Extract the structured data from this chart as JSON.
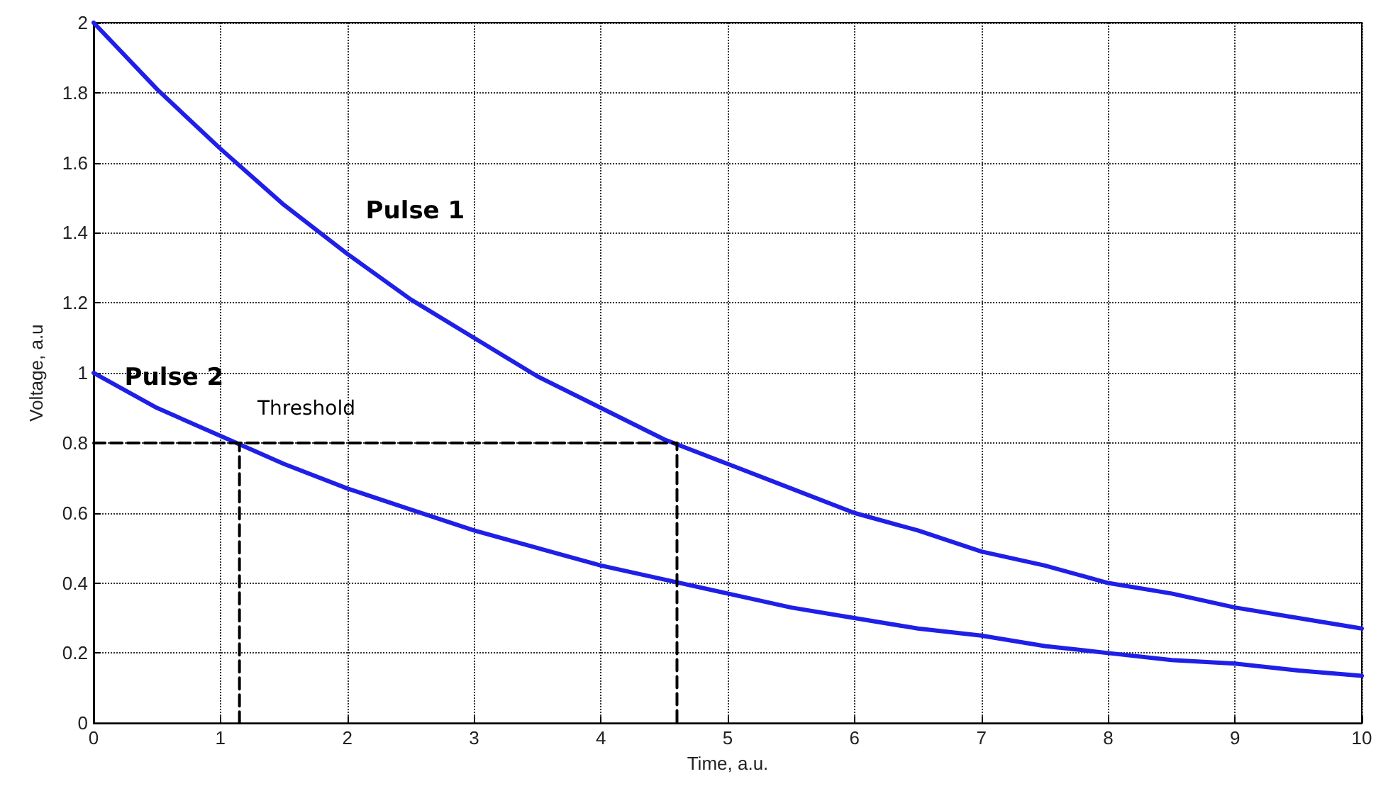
{
  "chart_data": {
    "type": "line",
    "xlabel": "Time, a.u.",
    "ylabel": "Voltage, a.u",
    "xlim": [
      0,
      10
    ],
    "xticks": [
      0,
      1,
      2,
      3,
      4,
      5,
      6,
      7,
      8,
      9,
      10
    ],
    "ylim": [
      0,
      2
    ],
    "yticks": [
      0,
      0.2,
      0.4,
      0.6,
      0.8,
      1,
      1.2,
      1.4,
      1.6,
      1.8,
      2
    ],
    "grid": true,
    "marker": "none",
    "series": [
      {
        "name": "Pulse 1",
        "color": "#1f1fe8",
        "line_style": "solid",
        "x": [
          0,
          0.5,
          1,
          1.5,
          2,
          2.5,
          3,
          3.5,
          4,
          4.5,
          5,
          5.5,
          6,
          6.5,
          7,
          7.5,
          8,
          8.5,
          9,
          9.5,
          10
        ],
        "values": [
          2,
          1.81,
          1.64,
          1.48,
          1.34,
          1.21,
          1.1,
          0.99,
          0.9,
          0.81,
          0.74,
          0.67,
          0.6,
          0.55,
          0.49,
          0.45,
          0.4,
          0.37,
          0.33,
          0.3,
          0.27
        ]
      },
      {
        "name": "Pulse 2",
        "color": "#1f1fe8",
        "line_style": "solid",
        "x": [
          0,
          0.5,
          1,
          1.5,
          2,
          2.5,
          3,
          3.5,
          4,
          4.5,
          5,
          5.5,
          6,
          6.5,
          7,
          7.5,
          8,
          8.5,
          9,
          9.5,
          10
        ],
        "values": [
          1,
          0.9,
          0.82,
          0.74,
          0.67,
          0.61,
          0.55,
          0.5,
          0.45,
          0.41,
          0.37,
          0.33,
          0.3,
          0.27,
          0.25,
          0.22,
          0.2,
          0.18,
          0.17,
          0.15,
          0.135
        ]
      },
      {
        "name": "Threshold",
        "color": "#000000",
        "line_style": "dashed",
        "x": [
          0,
          4.6,
          4.6
        ],
        "values": [
          0.8,
          0.8,
          0
        ]
      },
      {
        "color": "#000000",
        "line_style": "dashed",
        "x": [
          1.15,
          1.15
        ],
        "values": [
          0,
          0.8
        ]
      }
    ]
  }
}
